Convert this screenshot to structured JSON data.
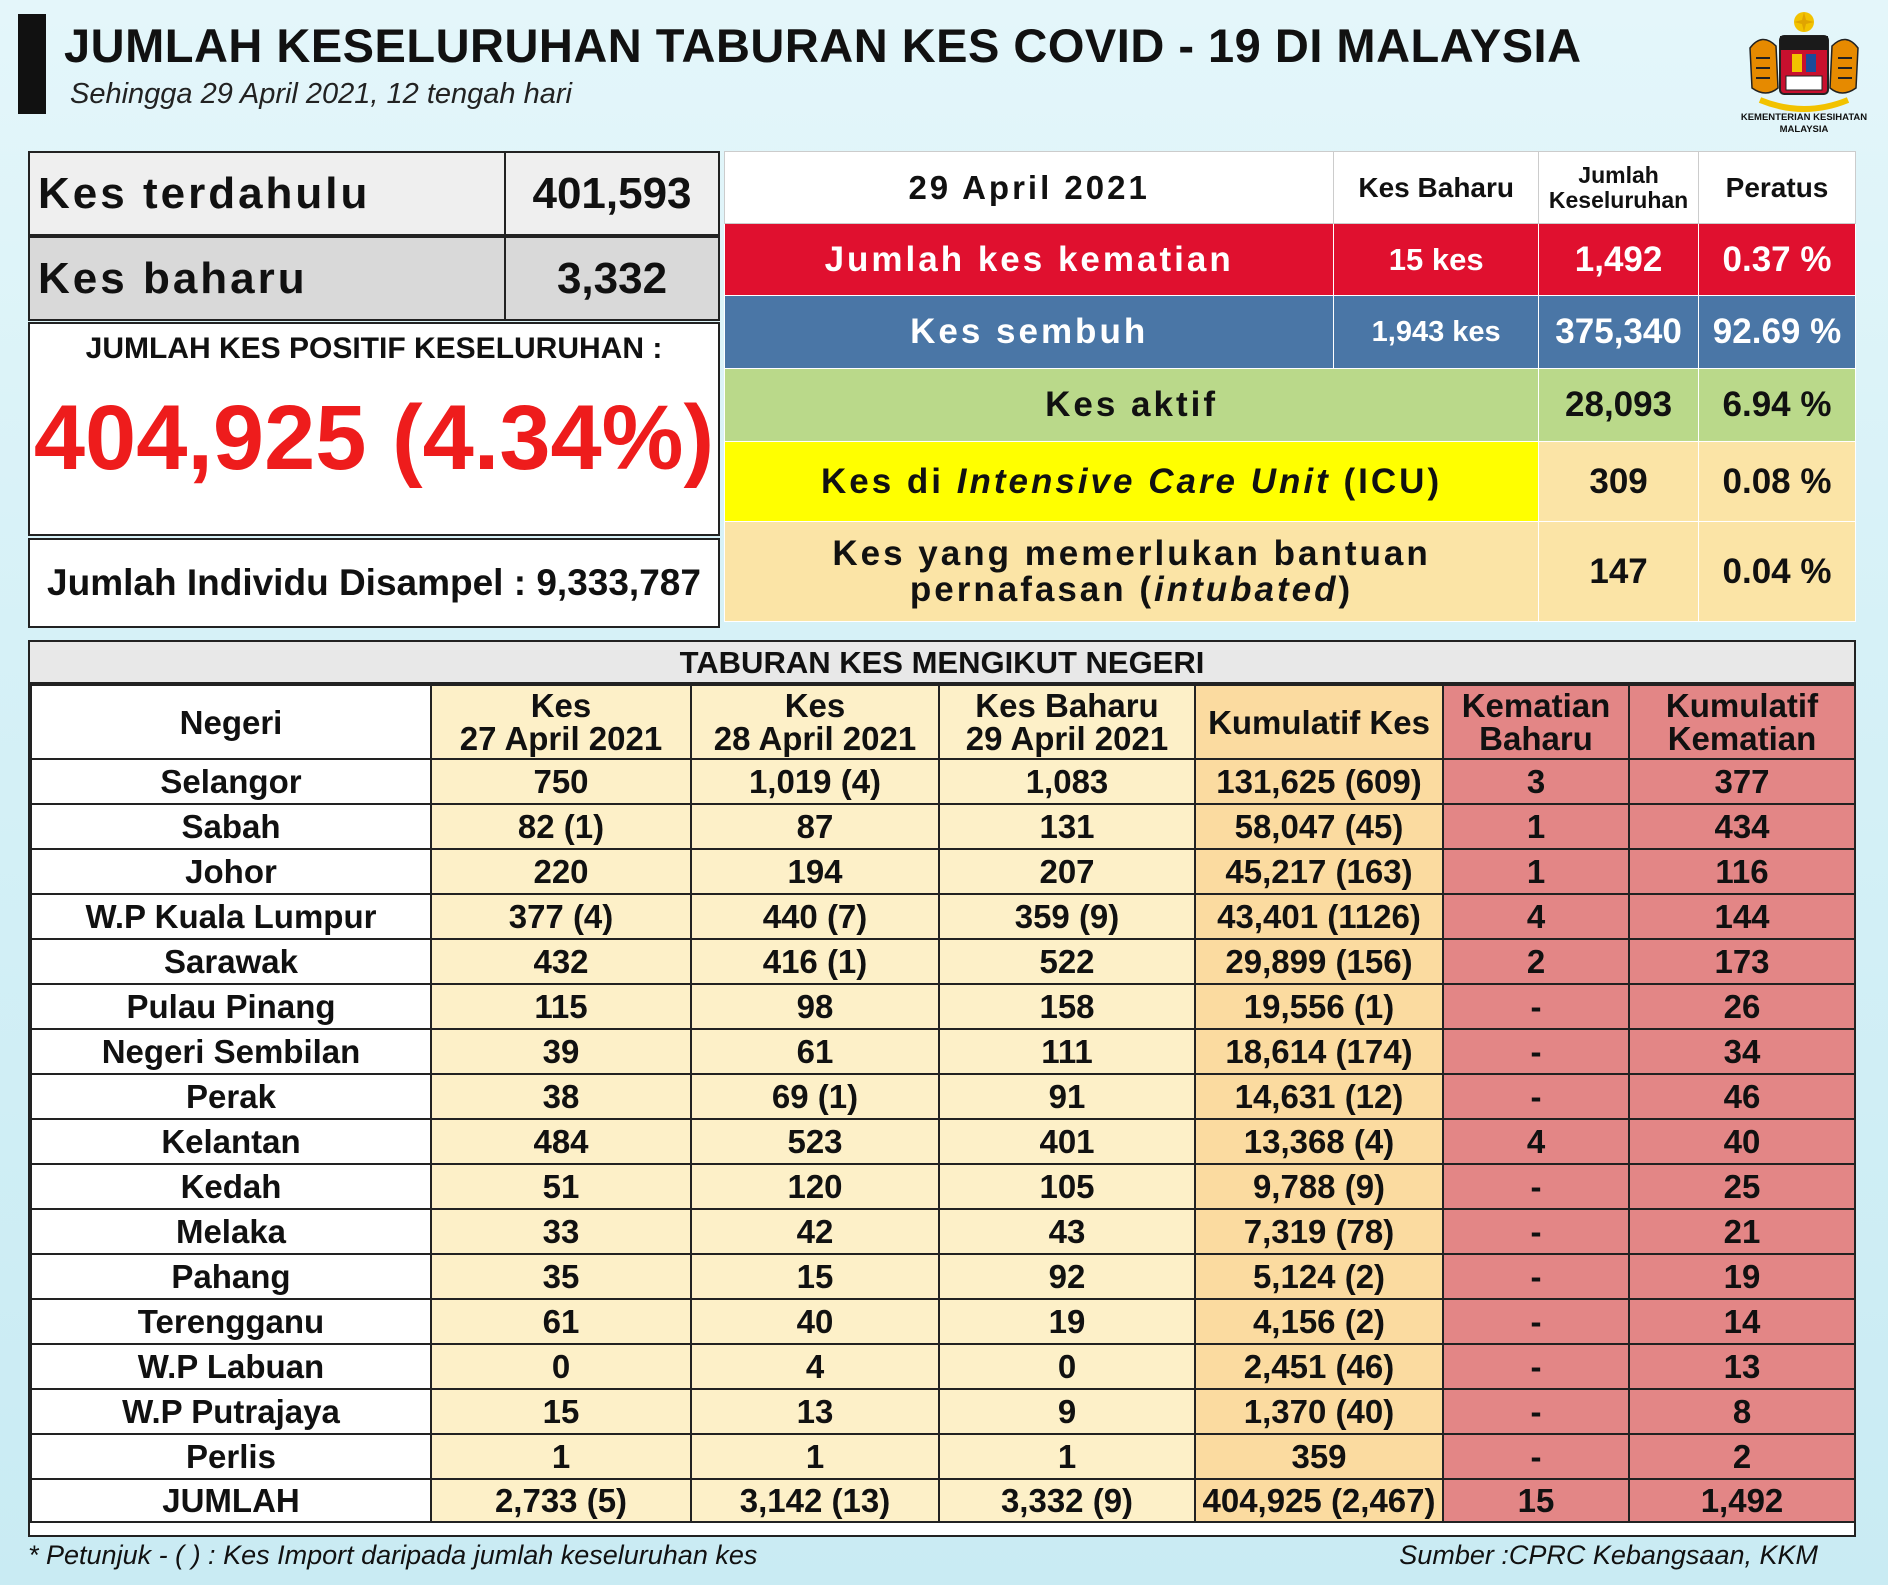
{
  "header": {
    "title": "JUMLAH KESELURUHAN TABURAN KES COVID - 19 DI MALAYSIA",
    "subtitle": "Sehingga 29 April 2021, 12 tengah hari",
    "logo_caption_1": "KEMENTERIAN KESIHATAN",
    "logo_caption_2": "MALAYSIA"
  },
  "summary": {
    "prev_label": "Kes terdahulu",
    "prev_value": "401,593",
    "new_label": "Kes baharu",
    "new_value": "3,332",
    "positive_label": "JUMLAH KES POSITIF KESELURUHAN :",
    "positive_value": "404,925 (4.34%)",
    "sampled": "Jumlah Individu Disampel : 9,333,787"
  },
  "status": {
    "date": "29 April 2021",
    "col_new": "Kes Baharu",
    "col_total_1": "Jumlah",
    "col_total_2": "Keseluruhan",
    "col_pct": "Peratus",
    "death": {
      "label": "Jumlah kes kematian",
      "new": "15 kes",
      "total": "1,492",
      "pct": "0.37 %"
    },
    "recovered": {
      "label": "Kes sembuh",
      "new": "1,943 kes",
      "total": "375,340",
      "pct": "92.69 %"
    },
    "active": {
      "label": "Kes aktif",
      "total": "28,093",
      "pct": "6.94 %"
    },
    "icu": {
      "label_pre": "Kes di ",
      "label_it": "Intensive Care Unit",
      "label_post": " (ICU)",
      "total": "309",
      "pct": "0.08 %"
    },
    "intubated": {
      "label_1": "Kes yang memerlukan bantuan",
      "label_2_pre": "pernafasan (",
      "label_2_it": "intubated",
      "label_2_post": ")",
      "total": "147",
      "pct": "0.04 %"
    }
  },
  "states": {
    "title": "TABURAN KES MENGIKUT NEGERI",
    "headers": {
      "state": "Negeri",
      "d27_1": "Kes",
      "d27_2": "27 April 2021",
      "d28_1": "Kes",
      "d28_2": "28 April 2021",
      "d29_1": "Kes Baharu",
      "d29_2": "29 April 2021",
      "cum": "Kumulatif Kes",
      "death_1": "Kematian",
      "death_2": "Baharu",
      "cumdeath_1": "Kumulatif",
      "cumdeath_2": "Kematian"
    },
    "rows": [
      [
        "Selangor",
        "750",
        "1,019 (4)",
        "1,083",
        "131,625 (609)",
        "3",
        "377"
      ],
      [
        "Sabah",
        "82 (1)",
        "87",
        "131",
        "58,047 (45)",
        "1",
        "434"
      ],
      [
        "Johor",
        "220",
        "194",
        "207",
        "45,217 (163)",
        "1",
        "116"
      ],
      [
        "W.P Kuala Lumpur",
        "377 (4)",
        "440 (7)",
        "359 (9)",
        "43,401 (1126)",
        "4",
        "144"
      ],
      [
        "Sarawak",
        "432",
        "416 (1)",
        "522",
        "29,899 (156)",
        "2",
        "173"
      ],
      [
        "Pulau Pinang",
        "115",
        "98",
        "158",
        "19,556 (1)",
        "-",
        "26"
      ],
      [
        "Negeri Sembilan",
        "39",
        "61",
        "111",
        "18,614 (174)",
        "-",
        "34"
      ],
      [
        "Perak",
        "38",
        "69 (1)",
        "91",
        "14,631 (12)",
        "-",
        "46"
      ],
      [
        "Kelantan",
        "484",
        "523",
        "401",
        "13,368 (4)",
        "4",
        "40"
      ],
      [
        "Kedah",
        "51",
        "120",
        "105",
        "9,788 (9)",
        "-",
        "25"
      ],
      [
        "Melaka",
        "33",
        "42",
        "43",
        "7,319 (78)",
        "-",
        "21"
      ],
      [
        "Pahang",
        "35",
        "15",
        "92",
        "5,124 (2)",
        "-",
        "19"
      ],
      [
        "Terengganu",
        "61",
        "40",
        "19",
        "4,156 (2)",
        "-",
        "14"
      ],
      [
        "W.P Labuan",
        "0",
        "4",
        "0",
        "2,451 (46)",
        "-",
        "13"
      ],
      [
        "W.P Putrajaya",
        "15",
        "13",
        "9",
        "1,370 (40)",
        "-",
        "8"
      ],
      [
        "Perlis",
        "1",
        "1",
        "1",
        "359",
        "-",
        "2"
      ]
    ],
    "total": [
      "JUMLAH",
      "2,733 (5)",
      "3,142 (13)",
      "3,332 (9)",
      "404,925 (2,467)",
      "15",
      "1,492"
    ]
  },
  "footer": {
    "note": "* Petunjuk  - (  ) : Kes Import daripada jumlah keseluruhan kes",
    "source": "Sumber :CPRC Kebangsaan,  KKM"
  }
}
